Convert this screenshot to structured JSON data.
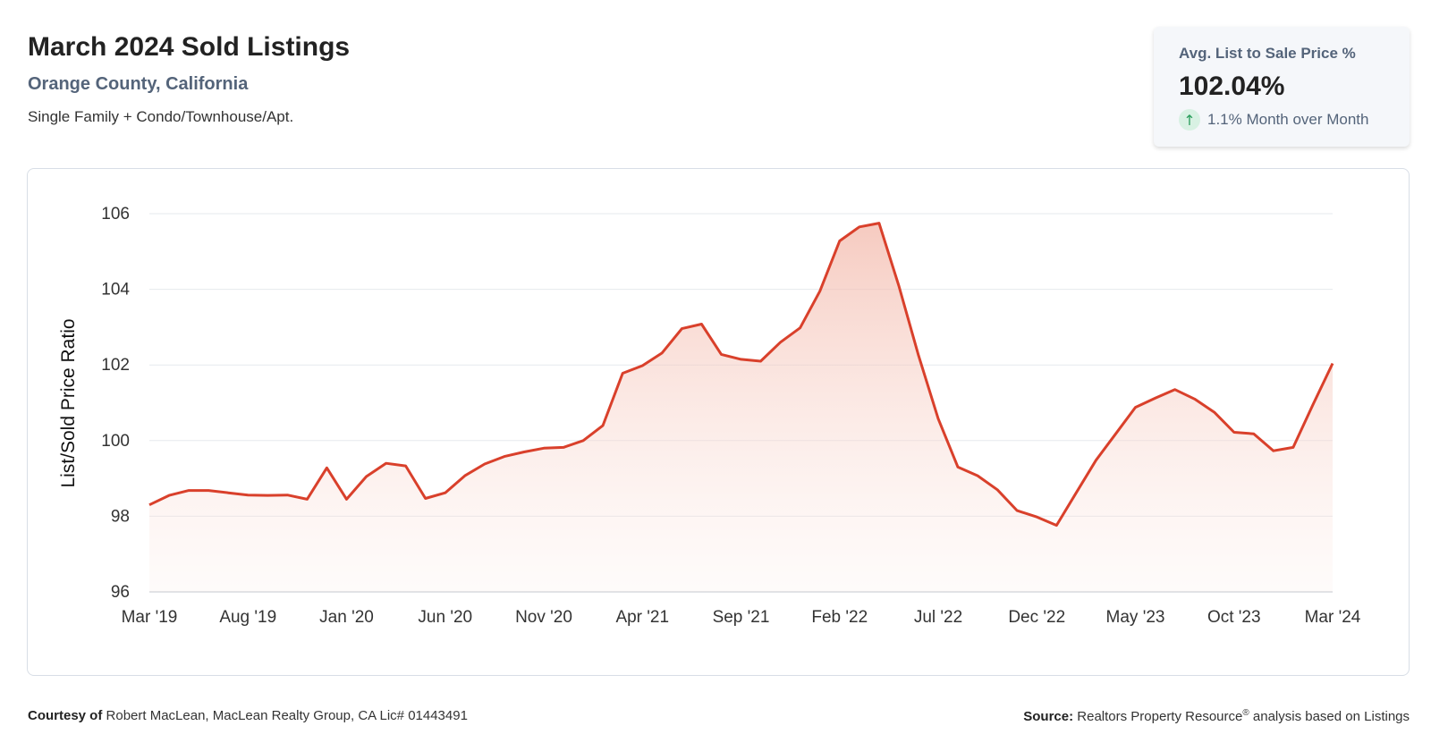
{
  "header": {
    "title": "March 2024 Sold Listings",
    "subtitle": "Orange County, California",
    "description": "Single Family + Condo/Townhouse/Apt."
  },
  "kpi": {
    "label": "Avg. List to Sale Price %",
    "value": "102.04%",
    "change": "1.1% Month over Month",
    "change_icon": "arrow-up-icon",
    "change_color": "#2a9d5c"
  },
  "chart_data": {
    "type": "area",
    "ylabel": "List/Sold Price Ratio",
    "xlabel": "",
    "ylim": [
      96,
      106
    ],
    "yticks": [
      96,
      98,
      100,
      102,
      104,
      106
    ],
    "grid": true,
    "line_color": "#d9402b",
    "fill_color": "#f3b9ab",
    "x_tick_labels": [
      "Mar '19",
      "Aug '19",
      "Jan '20",
      "Jun '20",
      "Nov '20",
      "Apr '21",
      "Sep '21",
      "Feb '22",
      "Jul '22",
      "Dec '22",
      "May '23",
      "Oct '23",
      "Mar '24"
    ],
    "x": [
      "2019-03",
      "2019-04",
      "2019-05",
      "2019-06",
      "2019-07",
      "2019-08",
      "2019-09",
      "2019-10",
      "2019-11",
      "2019-12",
      "2020-01",
      "2020-02",
      "2020-03",
      "2020-04",
      "2020-05",
      "2020-06",
      "2020-07",
      "2020-08",
      "2020-09",
      "2020-10",
      "2020-11",
      "2020-12",
      "2021-01",
      "2021-02",
      "2021-03",
      "2021-04",
      "2021-05",
      "2021-06",
      "2021-07",
      "2021-08",
      "2021-09",
      "2021-10",
      "2021-11",
      "2021-12",
      "2022-01",
      "2022-02",
      "2022-03",
      "2022-04",
      "2022-05",
      "2022-06",
      "2022-07",
      "2022-08",
      "2022-09",
      "2022-10",
      "2022-11",
      "2022-12",
      "2023-01",
      "2023-02",
      "2023-03",
      "2023-04",
      "2023-05",
      "2023-06",
      "2023-07",
      "2023-08",
      "2023-09",
      "2023-10",
      "2023-11",
      "2023-12",
      "2024-01",
      "2024-02",
      "2024-03"
    ],
    "series": [
      {
        "values": [
          98.3,
          98.55,
          98.68,
          98.68,
          98.62,
          98.56,
          98.55,
          98.56,
          98.45,
          99.28,
          98.45,
          99.05,
          99.4,
          99.33,
          98.47,
          98.62,
          99.07,
          99.38,
          99.58,
          99.7,
          99.8,
          99.82,
          100.0,
          100.4,
          101.78,
          101.98,
          102.32,
          102.96,
          103.08,
          102.28,
          102.15,
          102.1,
          102.6,
          102.98,
          103.95,
          105.28,
          105.65,
          105.75,
          104.1,
          102.25,
          100.58,
          99.3,
          99.07,
          98.7,
          98.15,
          97.98,
          97.76,
          98.62,
          99.48,
          100.18,
          100.88,
          101.12,
          101.35,
          101.1,
          100.75,
          100.22,
          100.18,
          99.73,
          99.82,
          100.95,
          102.04
        ]
      }
    ]
  },
  "footer": {
    "courtesy_label": "Courtesy of",
    "courtesy_text": "Robert MacLean, MacLean Realty Group, CA Lic# 01443491",
    "source_label": "Source:",
    "source_text": "Realtors Property Resource",
    "source_sup": "®",
    "source_suffix": "analysis based on Listings"
  }
}
